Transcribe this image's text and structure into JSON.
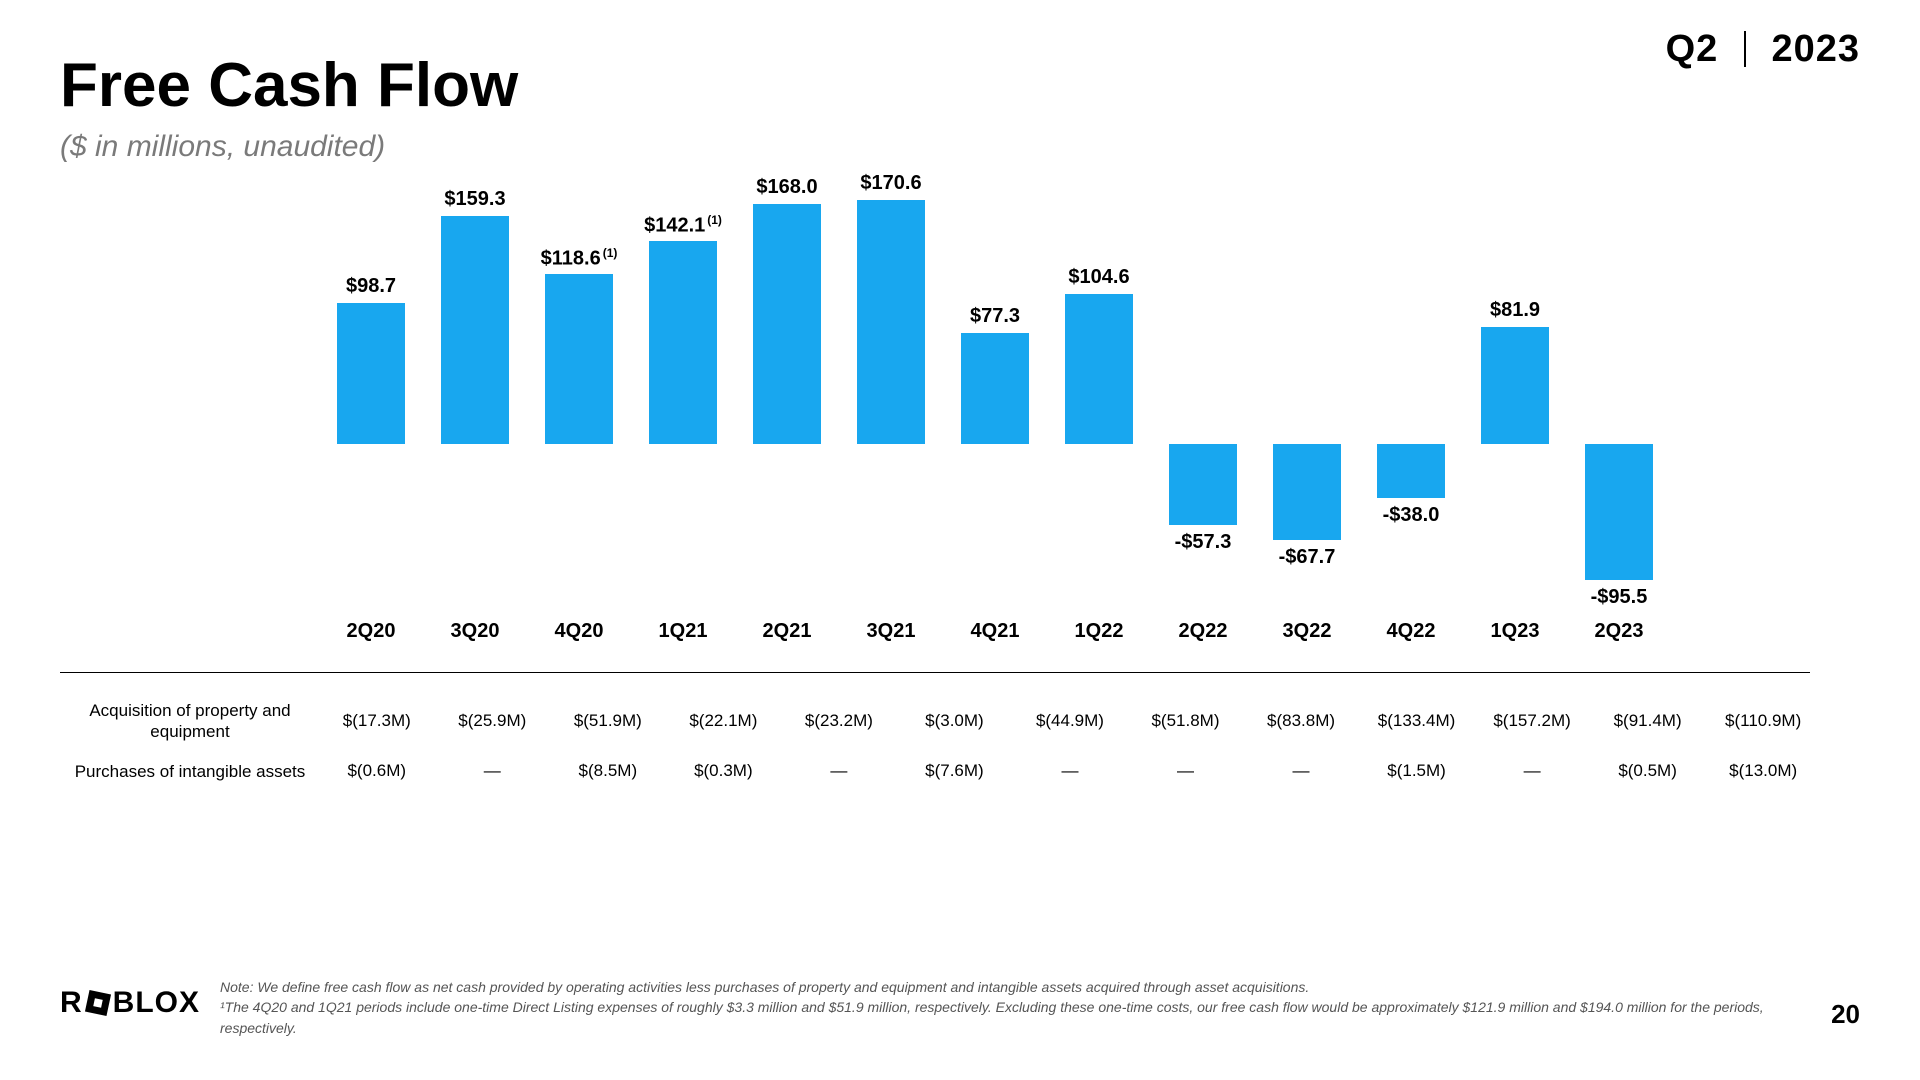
{
  "header": {
    "quarter": "Q2",
    "year": "2023"
  },
  "title": "Free Cash Flow",
  "subtitle": "($ in millions, unaudited)",
  "chart": {
    "type": "bar",
    "bar_color": "#18a7ef",
    "background_color": "#ffffff",
    "ylim_pos": 170.6,
    "ylim_neg": -95.5,
    "label_fontsize": 20,
    "label_fontweight": 700,
    "series": [
      {
        "period": "2Q20",
        "value": 98.7,
        "label": "$98.7",
        "footnote": ""
      },
      {
        "period": "3Q20",
        "value": 159.3,
        "label": "$159.3",
        "footnote": ""
      },
      {
        "period": "4Q20",
        "value": 118.6,
        "label": "$118.6",
        "footnote": "(1)"
      },
      {
        "period": "1Q21",
        "value": 142.1,
        "label": "$142.1",
        "footnote": "(1)"
      },
      {
        "period": "2Q21",
        "value": 168.0,
        "label": "$168.0",
        "footnote": ""
      },
      {
        "period": "3Q21",
        "value": 170.6,
        "label": "$170.6",
        "footnote": ""
      },
      {
        "period": "4Q21",
        "value": 77.3,
        "label": "$77.3",
        "footnote": ""
      },
      {
        "period": "1Q22",
        "value": 104.6,
        "label": "$104.6",
        "footnote": ""
      },
      {
        "period": "2Q22",
        "value": -57.3,
        "label": "-$57.3",
        "footnote": ""
      },
      {
        "period": "3Q22",
        "value": -67.7,
        "label": "-$67.7",
        "footnote": ""
      },
      {
        "period": "4Q22",
        "value": -38.0,
        "label": "-$38.0",
        "footnote": ""
      },
      {
        "period": "1Q23",
        "value": 81.9,
        "label": "$81.9",
        "footnote": ""
      },
      {
        "period": "2Q23",
        "value": -95.5,
        "label": "-$95.5",
        "footnote": ""
      }
    ]
  },
  "table": {
    "rows": [
      {
        "label": "Acquisition of property and equipment",
        "cells": [
          "$(17.3M)",
          "$(25.9M)",
          "$(51.9M)",
          "$(22.1M)",
          "$(23.2M)",
          "$(3.0M)",
          "$(44.9M)",
          "$(51.8M)",
          "$(83.8M)",
          "$(133.4M)",
          "$(157.2M)",
          "$(91.4M)",
          "$(110.9M)"
        ]
      },
      {
        "label": "Purchases of intangible assets",
        "cells": [
          "$(0.6M)",
          "—",
          "$(8.5M)",
          "$(0.3M)",
          "—",
          "$(7.6M)",
          "—",
          "—",
          "—",
          "$(1.5M)",
          "—",
          "$(0.5M)",
          "$(13.0M)"
        ]
      }
    ]
  },
  "footnote": {
    "line1": "Note: We define free cash flow as net cash provided by operating activities less purchases of property and equipment and intangible assets acquired through asset acquisitions.",
    "line2": "¹The 4Q20 and 1Q21 periods include one-time Direct Listing expenses of roughly $3.3 million and $51.9 million, respectively.  Excluding these one-time costs, our free cash flow would be approximately $121.9 million and $194.0 million for the periods, respectively."
  },
  "logo_text_left": "R",
  "logo_text_right": "BLOX",
  "page_number": "20"
}
